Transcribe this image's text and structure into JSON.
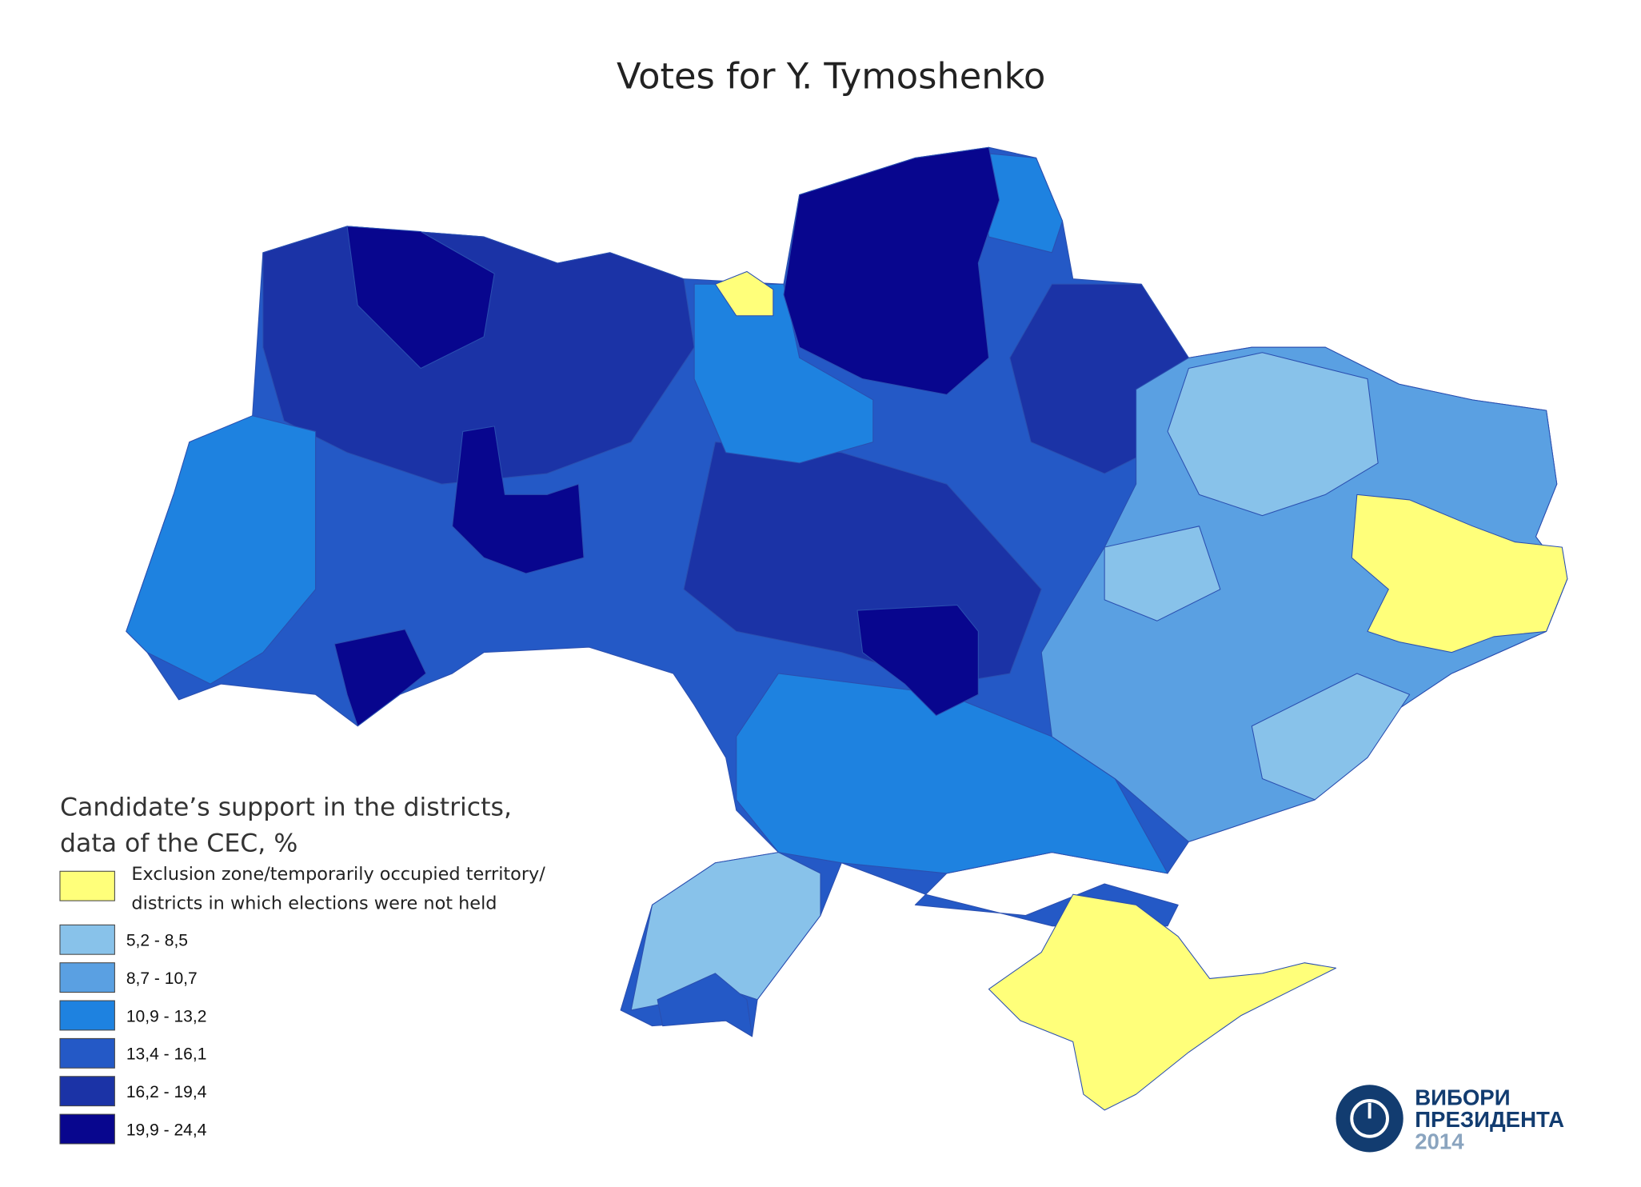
{
  "title": "Votes for Y. Tymoshenko",
  "legend": {
    "title_lines": [
      "Candidate’s support in the districts,",
      "data of the CEC, %"
    ],
    "items": [
      {
        "label": [
          "Exclusion zone/temporarily occupied territory/",
          "districts in which elections were not held"
        ],
        "color": "#ffff7a"
      },
      {
        "label": "5,2 - 8,5",
        "color": "#88c2ea"
      },
      {
        "label": "8,7 - 10,7",
        "color": "#5aa0e2"
      },
      {
        "label": "10,9 - 13,2",
        "color": "#1e82e0"
      },
      {
        "label": "13,4 - 16,1",
        "color": "#2459c6"
      },
      {
        "label": "16,2 - 19,4",
        "color": "#1b33a6"
      },
      {
        "label": "19,9 - 24,4",
        "color": "#08068e"
      }
    ]
  },
  "logo": {
    "line1": "ВИБОРИ",
    "line2": "ПРЕЗИДЕНТА",
    "year": "2014"
  }
}
